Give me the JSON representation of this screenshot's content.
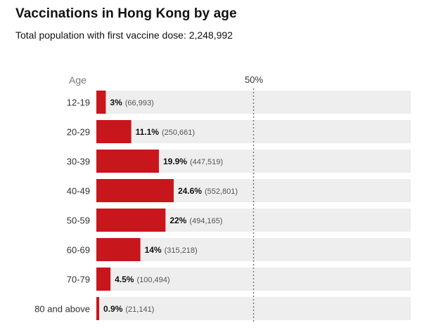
{
  "title": "Vaccinations in Hong Kong by age",
  "subtitle": "Total population with first vaccine dose: 2,248,992",
  "axis_header": "Age",
  "reference_label": "50%",
  "colors": {
    "bar": "#c8161d",
    "track": "#eeeeee",
    "reference_line": "#777777"
  },
  "chart_data": {
    "type": "bar",
    "orientation": "horizontal",
    "xlim": [
      0,
      100
    ],
    "reference_line": 50,
    "categories": [
      "12-19",
      "20-29",
      "30-39",
      "40-49",
      "50-59",
      "60-69",
      "70-79",
      "80 and above"
    ],
    "values": [
      3,
      11.1,
      19.9,
      24.6,
      22,
      14,
      4.5,
      0.9
    ],
    "value_labels": [
      "3%",
      "11.1%",
      "19.9%",
      "24.6%",
      "22%",
      "14%",
      "4.5%",
      "0.9%"
    ],
    "count_labels": [
      "(66,993)",
      "(250,661)",
      "(447,519)",
      "(552,801)",
      "(494,165)",
      "(315,218)",
      "(100,494)",
      "(21,141)"
    ]
  }
}
